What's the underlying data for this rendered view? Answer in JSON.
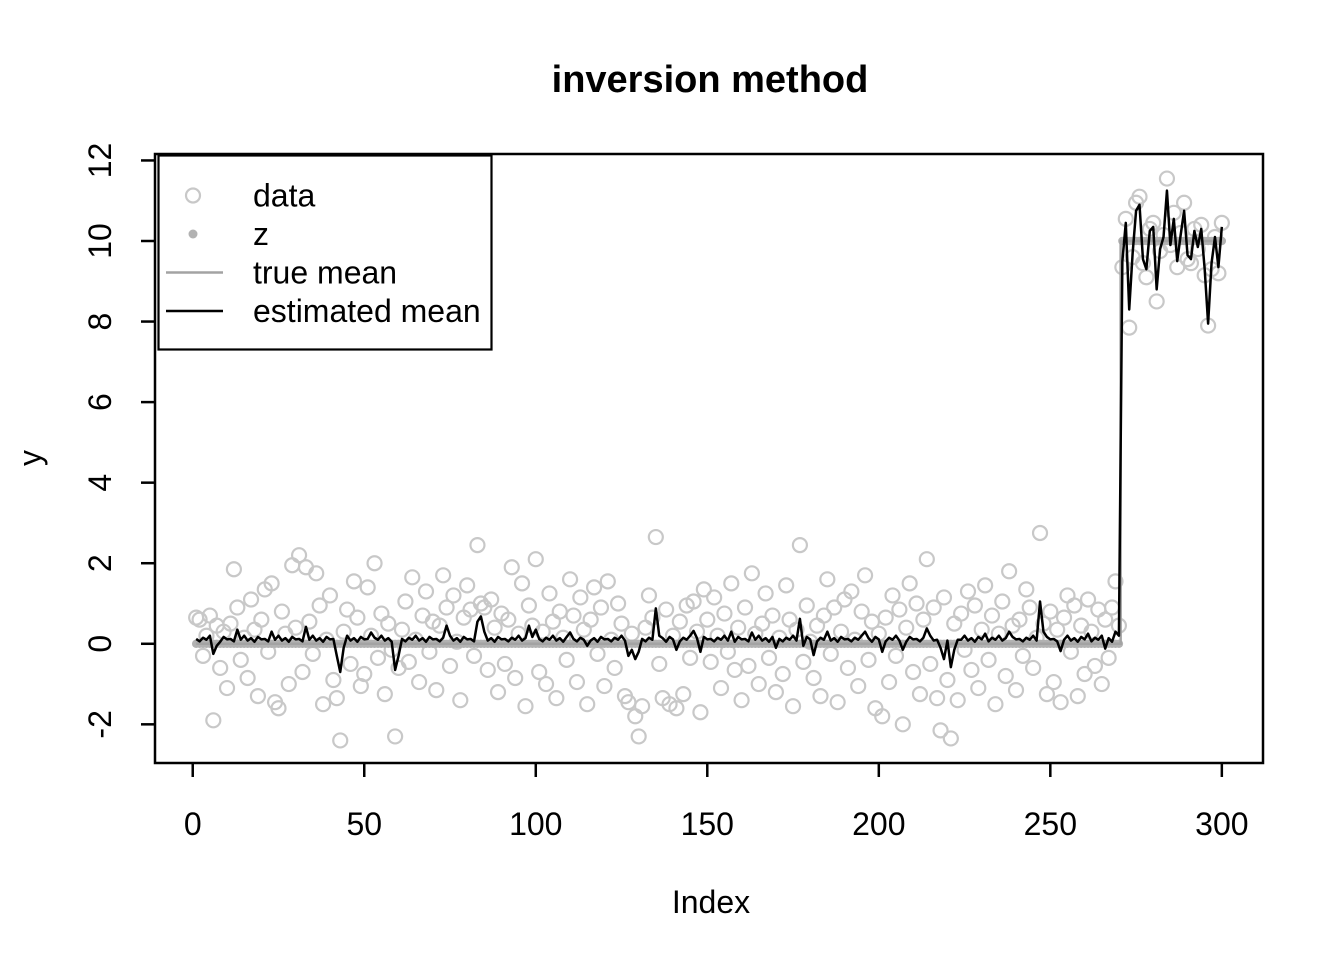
{
  "page": {
    "background": "#ffffff"
  },
  "chart_data": {
    "type": "scatter",
    "title": "inversion method",
    "xlabel": "Index",
    "ylabel": "y",
    "x_ticks": [
      0,
      50,
      100,
      150,
      200,
      250,
      300
    ],
    "y_ticks": [
      -2,
      0,
      2,
      4,
      6,
      8,
      10,
      12
    ],
    "xlim": [
      -11,
      312
    ],
    "ylim": [
      -2.96,
      12.16
    ],
    "x_start": 1,
    "n_points": 300,
    "changepoint": 271,
    "grid": "off",
    "colors": {
      "data": "#c8c8c8",
      "z": "#b2b2b2",
      "true_mean": "#a3a3a3",
      "estimated_mean": "#000000"
    },
    "legend": {
      "position": "top-left",
      "items": [
        {
          "label": "data",
          "marker": "open-circle"
        },
        {
          "label": "z",
          "marker": "filled-dot"
        },
        {
          "label": "true mean",
          "marker": "line-gray"
        },
        {
          "label": "estimated mean",
          "marker": "line-black"
        }
      ]
    },
    "series": [
      {
        "name": "data",
        "type": "points",
        "marker": "open-circle",
        "color_key": "data",
        "y": [
          0.65,
          0.6,
          -0.3,
          0.2,
          0.7,
          -1.9,
          0.45,
          -0.6,
          0.3,
          -1.1,
          0.5,
          1.85,
          0.9,
          -0.4,
          0.15,
          -0.85,
          1.1,
          0.35,
          -1.3,
          0.6,
          1.35,
          -0.2,
          1.5,
          -1.45,
          -1.6,
          0.8,
          0.25,
          -1.0,
          1.95,
          0.4,
          2.2,
          -0.7,
          1.9,
          0.55,
          -0.25,
          1.75,
          0.95,
          -1.5,
          0.1,
          1.2,
          -0.9,
          -1.35,
          -2.4,
          0.3,
          0.85,
          -0.5,
          1.55,
          0.65,
          -1.05,
          -0.75,
          1.4,
          0.2,
          2.0,
          -0.35,
          0.75,
          -1.25,
          0.5,
          -0.15,
          -2.3,
          -0.6,
          0.35,
          1.05,
          -0.45,
          1.65,
          0.1,
          -0.95,
          0.7,
          1.3,
          -0.2,
          0.55,
          -1.15,
          0.45,
          1.7,
          0.9,
          -0.55,
          1.2,
          0.05,
          -1.4,
          0.65,
          1.45,
          0.85,
          -0.3,
          2.45,
          1.0,
          0.9,
          -0.65,
          1.1,
          0.4,
          -1.2,
          0.75,
          -0.5,
          0.6,
          1.9,
          -0.85,
          0.25,
          1.5,
          -1.55,
          0.95,
          0.45,
          2.1,
          -0.7,
          0.3,
          -1.0,
          1.25,
          0.55,
          -1.35,
          0.8,
          0.15,
          -0.4,
          1.6,
          0.7,
          -0.95,
          1.15,
          0.35,
          -1.5,
          0.6,
          1.4,
          -0.25,
          0.9,
          -1.05,
          1.55,
          0.1,
          -0.6,
          1.0,
          0.5,
          -1.3,
          -1.45,
          0.25,
          -1.8,
          -2.3,
          -1.55,
          0.4,
          1.2,
          0.65,
          2.65,
          -0.5,
          -1.35,
          0.85,
          -1.5,
          0.2,
          -1.6,
          0.55,
          -1.25,
          0.95,
          -0.35,
          1.05,
          0.3,
          -1.7,
          1.35,
          0.6,
          -0.45,
          1.15,
          0.2,
          -1.1,
          0.75,
          -0.2,
          1.5,
          -0.65,
          0.4,
          -1.4,
          0.9,
          -0.55,
          1.75,
          0.25,
          -1.0,
          0.5,
          1.25,
          -0.35,
          0.7,
          -1.2,
          0.15,
          -0.75,
          1.45,
          0.6,
          -1.55,
          0.35,
          2.45,
          -0.45,
          0.95,
          0.05,
          -0.85,
          0.45,
          -1.3,
          0.7,
          1.6,
          -0.25,
          0.9,
          -1.45,
          0.3,
          1.1,
          -0.6,
          1.3,
          0.1,
          -1.05,
          0.8,
          1.7,
          -0.4,
          0.55,
          -1.6,
          0.25,
          -1.8,
          0.65,
          -0.95,
          1.2,
          -0.3,
          0.85,
          -2.0,
          0.4,
          1.5,
          -0.7,
          1.0,
          -1.25,
          0.6,
          2.1,
          -0.5,
          0.9,
          -1.35,
          -2.15,
          1.15,
          -0.9,
          -2.35,
          0.5,
          -1.4,
          0.75,
          -0.15,
          1.3,
          -0.65,
          0.95,
          -1.1,
          0.35,
          1.45,
          -0.4,
          0.7,
          -1.5,
          0.25,
          1.05,
          -0.8,
          1.8,
          0.45,
          -1.15,
          0.6,
          -0.3,
          1.35,
          0.9,
          -0.6,
          0.15,
          2.75,
          0.5,
          -1.25,
          0.8,
          -0.95,
          0.35,
          -1.45,
          0.65,
          1.2,
          -0.2,
          0.95,
          -1.3,
          0.45,
          -0.75,
          1.1,
          0.3,
          -0.55,
          0.85,
          -1.0,
          0.6,
          -0.35,
          0.9,
          1.55,
          0.45,
          9.35,
          10.55,
          7.85,
          9.6,
          10.95,
          11.1,
          9.45,
          9.1,
          10.3,
          10.45,
          8.5,
          9.75,
          10.15,
          11.55,
          9.9,
          10.7,
          9.35,
          10.2,
          10.95,
          9.55,
          9.45,
          10.3,
          9.8,
          10.4,
          9.15,
          7.9,
          9.3,
          10.1,
          9.2,
          10.45
        ]
      },
      {
        "name": "z",
        "type": "points",
        "marker": "filled-dot",
        "color_key": "z",
        "step": {
          "before": 0,
          "after": 10
        }
      },
      {
        "name": "true mean",
        "type": "step-line",
        "color_key": "true_mean",
        "step": {
          "before": 0,
          "after": 10
        }
      },
      {
        "name": "estimated mean",
        "type": "line",
        "color_key": "estimated_mean",
        "y": [
          0.12,
          0.06,
          0.15,
          0.1,
          0.2,
          -0.25,
          -0.05,
          0.05,
          0.17,
          0.11,
          0.12,
          0.06,
          0.35,
          0.1,
          0.2,
          0.08,
          0.14,
          0.05,
          0.17,
          0.11,
          0.12,
          0.06,
          0.3,
          0.1,
          0.2,
          0.08,
          0.14,
          0.05,
          0.17,
          0.11,
          0.12,
          0.06,
          0.42,
          0.1,
          0.2,
          0.08,
          0.14,
          0.05,
          0.17,
          0.11,
          0.12,
          -0.3,
          -0.7,
          -0.1,
          0.2,
          0.08,
          0.14,
          0.05,
          0.17,
          0.11,
          0.12,
          0.28,
          0.15,
          0.1,
          0.2,
          0.08,
          0.14,
          0.05,
          -0.65,
          -0.3,
          0.12,
          0.06,
          0.15,
          0.1,
          0.2,
          0.08,
          0.14,
          0.05,
          0.17,
          0.11,
          0.12,
          0.06,
          0.15,
          0.45,
          0.2,
          0.08,
          0.14,
          0.05,
          0.17,
          0.11,
          0.12,
          0.06,
          0.55,
          0.68,
          0.3,
          0.08,
          0.14,
          0.05,
          0.17,
          0.11,
          0.12,
          0.06,
          0.15,
          0.1,
          0.2,
          0.08,
          0.14,
          0.45,
          0.17,
          0.35,
          0.12,
          0.06,
          0.15,
          0.1,
          0.2,
          0.08,
          0.14,
          0.05,
          0.17,
          0.28,
          0.12,
          0.06,
          0.15,
          0.1,
          -0.05,
          0.08,
          0.14,
          0.05,
          0.17,
          0.11,
          0.12,
          0.06,
          0.15,
          0.1,
          0.2,
          0.08,
          -0.3,
          -0.15,
          -0.38,
          -0.2,
          0.12,
          0.06,
          0.15,
          0.1,
          0.88,
          0.2,
          0.14,
          0.05,
          0.17,
          0.11,
          -0.15,
          0.06,
          0.15,
          0.1,
          0.2,
          0.32,
          0.14,
          -0.2,
          0.17,
          0.11,
          0.12,
          0.06,
          0.15,
          0.1,
          0.2,
          0.08,
          0.3,
          0.05,
          0.17,
          0.11,
          0.12,
          0.06,
          0.28,
          0.1,
          0.2,
          0.08,
          0.14,
          0.05,
          0.17,
          -0.1,
          0.12,
          0.06,
          0.15,
          0.1,
          0.2,
          0.08,
          0.62,
          -0.05,
          0.17,
          0.11,
          -0.28,
          0.06,
          0.15,
          0.1,
          0.3,
          0.08,
          0.14,
          0.05,
          0.17,
          0.11,
          0.12,
          0.06,
          0.15,
          0.1,
          0.2,
          0.3,
          0.14,
          0.05,
          0.17,
          0.11,
          -0.2,
          0.06,
          0.15,
          0.1,
          0.2,
          0.08,
          -0.15,
          0.05,
          0.17,
          0.11,
          0.12,
          0.06,
          0.15,
          0.38,
          0.2,
          0.08,
          0.1,
          -0.1,
          -0.38,
          0.08,
          -0.58,
          -0.15,
          0.1,
          0.1,
          0.2,
          0.08,
          0.14,
          0.05,
          0.17,
          0.11,
          0.25,
          0.06,
          0.15,
          0.1,
          0.2,
          0.08,
          0.14,
          0.3,
          0.17,
          0.11,
          0.12,
          0.06,
          0.15,
          0.1,
          0.2,
          0.08,
          1.05,
          0.3,
          0.17,
          0.11,
          0.12,
          0.06,
          -0.18,
          0.1,
          0.2,
          0.08,
          0.14,
          0.05,
          0.17,
          0.11,
          0.25,
          0.06,
          0.15,
          0.1,
          0.2,
          -0.12,
          0.14,
          0.05,
          0.3,
          0.2,
          9.5,
          10.45,
          8.3,
          9.7,
          10.75,
          10.9,
          9.55,
          9.3,
          10.25,
          10.35,
          8.8,
          9.8,
          10.1,
          11.25,
          9.9,
          10.55,
          9.5,
          10.15,
          10.75,
          9.65,
          9.55,
          10.25,
          9.85,
          10.3,
          9.3,
          7.95,
          9.45,
          10.1,
          9.35,
          10.35
        ]
      }
    ]
  }
}
